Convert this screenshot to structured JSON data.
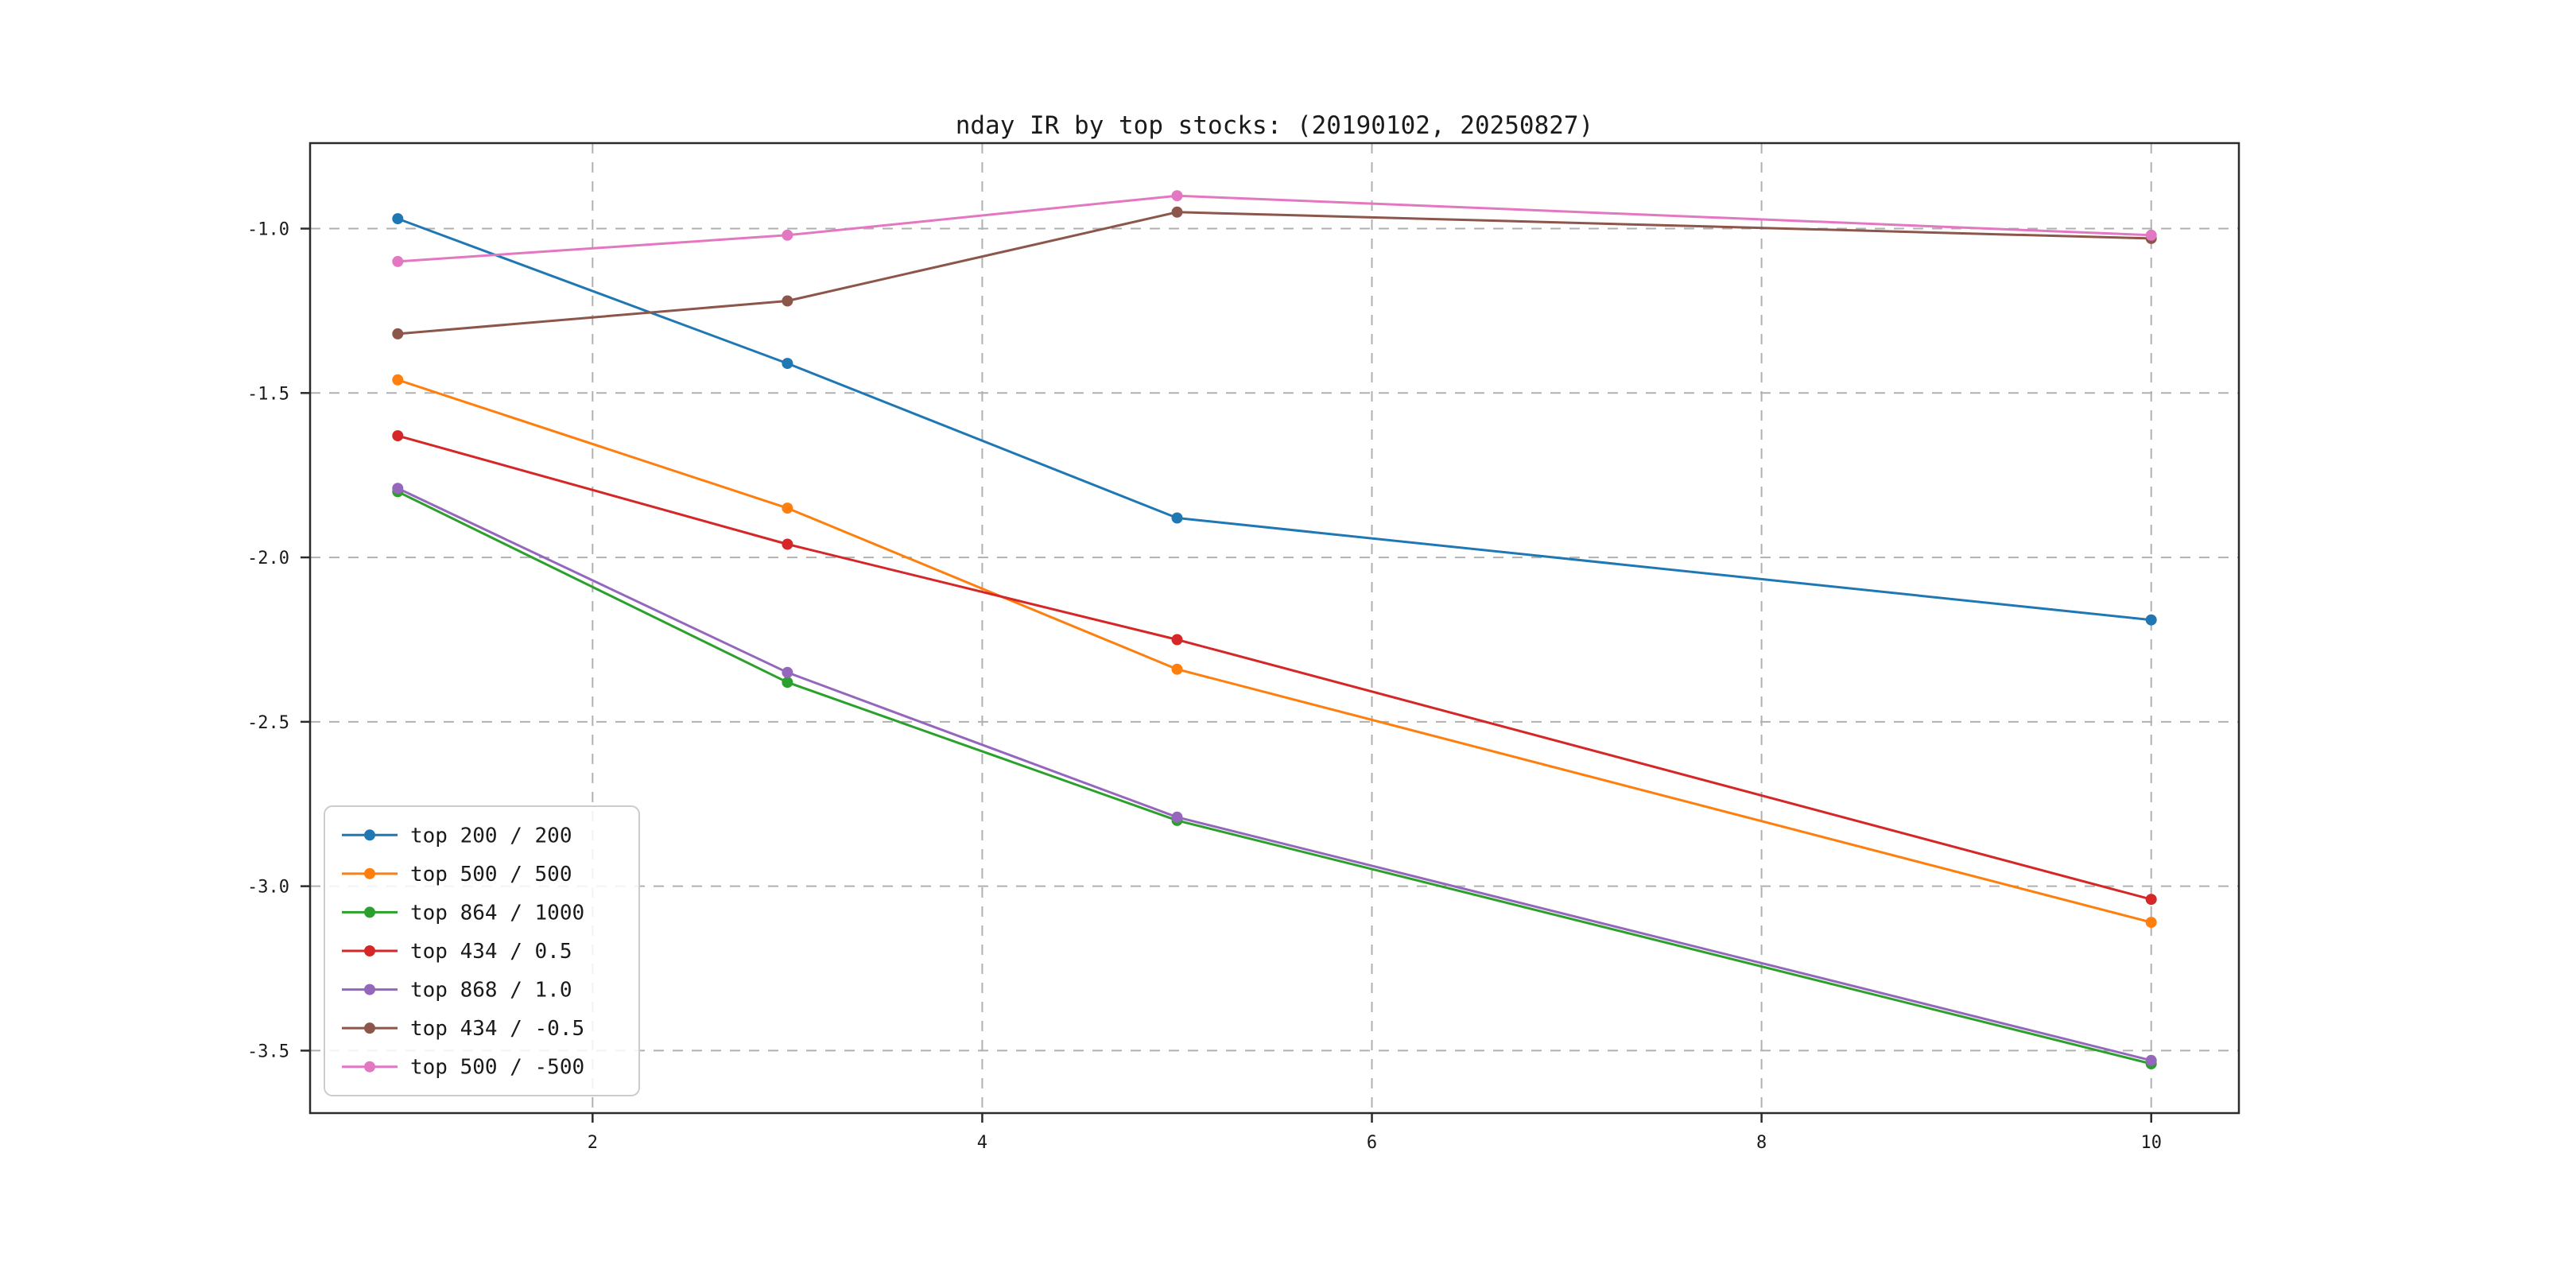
{
  "figure": {
    "background": "#ffffff"
  },
  "chart_data": {
    "type": "line",
    "title": "nday IR by top stocks: (20190102, 20250827)",
    "xlabel": "",
    "ylabel": "",
    "x": [
      1,
      3,
      5,
      10
    ],
    "series": [
      {
        "name": "top 200 / 200",
        "color": "#1f77b4",
        "values": [
          -0.97,
          -1.41,
          -1.88,
          -2.19
        ]
      },
      {
        "name": "top 500 / 500",
        "color": "#ff7f0e",
        "values": [
          -1.46,
          -1.85,
          -2.34,
          -3.11
        ]
      },
      {
        "name": "top 864 / 1000",
        "color": "#2ca02c",
        "values": [
          -1.8,
          -2.38,
          -2.8,
          -3.54
        ]
      },
      {
        "name": "top 434 / 0.5",
        "color": "#d62728",
        "values": [
          -1.63,
          -1.96,
          -2.25,
          -3.04
        ]
      },
      {
        "name": "top 868 / 1.0",
        "color": "#9467bd",
        "values": [
          -1.79,
          -2.35,
          -2.79,
          -3.53
        ]
      },
      {
        "name": "top 434 / -0.5",
        "color": "#8c564b",
        "values": [
          -1.32,
          -1.22,
          -0.95,
          -1.03
        ]
      },
      {
        "name": "top 500 / -500",
        "color": "#e377c2",
        "values": [
          -1.1,
          -1.02,
          -0.9,
          -1.02
        ]
      }
    ],
    "xlim": [
      0.55,
      10.45
    ],
    "ylim": [
      -3.69,
      -0.74
    ],
    "xticks": [
      2,
      4,
      6,
      8,
      10
    ],
    "yticks": [
      -1.0,
      -1.5,
      -2.0,
      -2.5,
      -3.0,
      -3.5
    ],
    "xtick_labels": [
      "2",
      "4",
      "6",
      "8",
      "10"
    ],
    "ytick_labels": [
      "-1.0",
      "-1.5",
      "-2.0",
      "-2.5",
      "-3.0",
      "-3.5"
    ],
    "grid": true,
    "grid_style": "dashed",
    "legend_position": "lower left",
    "marker": "o"
  },
  "styles": {
    "grid_color": "#b0b0b0",
    "spine_color": "#2b2b2b",
    "tick_color": "#2b2b2b",
    "tick_label_color": "#262626",
    "title_color": "#000000",
    "legend_border_color": "#cccccc",
    "legend_background": "#ffffff"
  }
}
